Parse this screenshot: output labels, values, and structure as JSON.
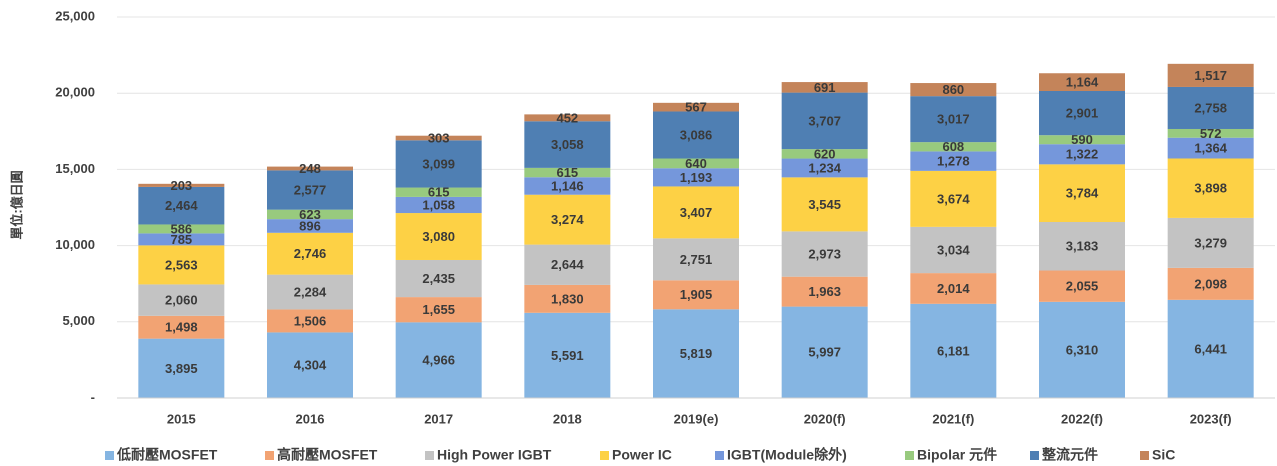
{
  "chart_data": {
    "type": "bar",
    "stacked": true,
    "ylabel": "單位:億日圓",
    "categories": [
      "2015",
      "2016",
      "2017",
      "2018",
      "2019(e)",
      "2020(f)",
      "2021(f)",
      "2022(f)",
      "2023(f)"
    ],
    "ylim": [
      0,
      25000
    ],
    "yticks": [
      {
        "value": 0,
        "label": "-"
      },
      {
        "value": 5000,
        "label": "5,000"
      },
      {
        "value": 10000,
        "label": "10,000"
      },
      {
        "value": 15000,
        "label": "15,000"
      },
      {
        "value": 20000,
        "label": "20,000"
      },
      {
        "value": 25000,
        "label": "25,000"
      }
    ],
    "grid": true,
    "legend": "bottom",
    "series": [
      {
        "name": "低耐壓MOSFET",
        "color": "#85b5e2",
        "values": [
          3895,
          4304,
          4966,
          5591,
          5819,
          5997,
          6181,
          6310,
          6441
        ],
        "value_labels": [
          "3,895",
          "4,304",
          "4,966",
          "5,591",
          "5,819",
          "5,997",
          "6,181",
          "6,310",
          "6,441"
        ]
      },
      {
        "name": "高耐壓MOSFET",
        "color": "#f2a373",
        "values": [
          1498,
          1506,
          1655,
          1830,
          1905,
          1963,
          2014,
          2055,
          2098
        ],
        "value_labels": [
          "1,498",
          "1,506",
          "1,655",
          "1,830",
          "1,905",
          "1,963",
          "2,014",
          "2,055",
          "2,098"
        ]
      },
      {
        "name": "High Power IGBT",
        "color": "#c3c3c3",
        "values": [
          2060,
          2284,
          2435,
          2644,
          2751,
          2973,
          3034,
          3183,
          3279
        ],
        "value_labels": [
          "2,060",
          "2,284",
          "2,435",
          "2,644",
          "2,751",
          "2,973",
          "3,034",
          "3,183",
          "3,279"
        ]
      },
      {
        "name": "Power IC",
        "color": "#fdd145",
        "values": [
          2563,
          2746,
          3080,
          3274,
          3407,
          3545,
          3674,
          3784,
          3898
        ],
        "value_labels": [
          "2,563",
          "2,746",
          "3,080",
          "3,274",
          "3,407",
          "3,545",
          "3,674",
          "3,784",
          "3,898"
        ]
      },
      {
        "name": "IGBT(Module除外)",
        "color": "#7597db",
        "values": [
          785,
          896,
          1058,
          1146,
          1193,
          1234,
          1278,
          1322,
          1364
        ],
        "value_labels": [
          "785",
          "896",
          "1,058",
          "1,146",
          "1,193",
          "1,234",
          "1,278",
          "1,322",
          "1,364"
        ]
      },
      {
        "name": "Bipolar 元件",
        "color": "#98ca7e",
        "values": [
          586,
          623,
          615,
          615,
          640,
          620,
          608,
          590,
          572
        ],
        "value_labels": [
          "586",
          "623",
          "615",
          "615",
          "640",
          "620",
          "608",
          "590",
          "572"
        ]
      },
      {
        "name": "整流元件",
        "color": "#4f7fb3",
        "values": [
          2464,
          2577,
          3099,
          3058,
          3086,
          3707,
          3017,
          2901,
          2758
        ],
        "value_labels": [
          "2,464",
          "2,577",
          "3,099",
          "3,058",
          "3,086",
          "3,707",
          "3,017",
          "2,901",
          "2,758"
        ]
      },
      {
        "name": "SiC",
        "color": "#c4845a",
        "values": [
          203,
          248,
          303,
          452,
          567,
          691,
          860,
          1164,
          1517
        ],
        "value_labels": [
          "203",
          "248",
          "303",
          "452",
          "567",
          "691",
          "860",
          "1,164",
          "1,517"
        ]
      }
    ]
  }
}
